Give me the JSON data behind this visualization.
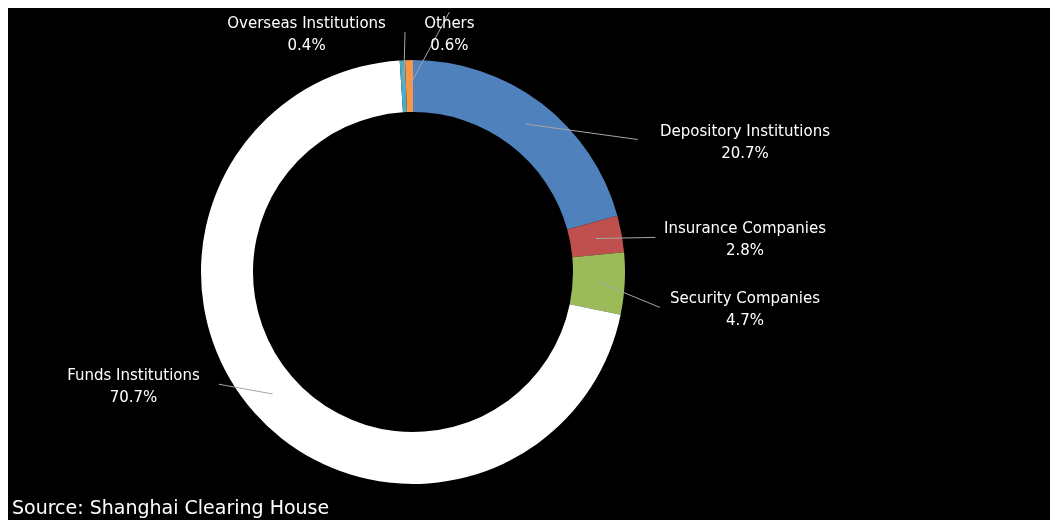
{
  "chart_data": {
    "type": "donut",
    "categories": [
      "Depository Institutions",
      "Insurance Companies",
      "Security Companies",
      "Funds Institutions",
      "Overseas Institutions",
      "Others"
    ],
    "values": [
      20.7,
      2.8,
      4.7,
      70.7,
      0.4,
      0.6
    ],
    "colors": [
      "#4f81bd",
      "#c0504d",
      "#9bbb59",
      "#ffffff",
      "#4bacc6",
      "#f79646"
    ],
    "value_labels": [
      "20.7%",
      "2.8%",
      "4.7%",
      "70.7%",
      "0.4%",
      "0.6%"
    ],
    "annotations": [
      "Source: Shanghai Clearing House"
    ],
    "legend": false
  }
}
